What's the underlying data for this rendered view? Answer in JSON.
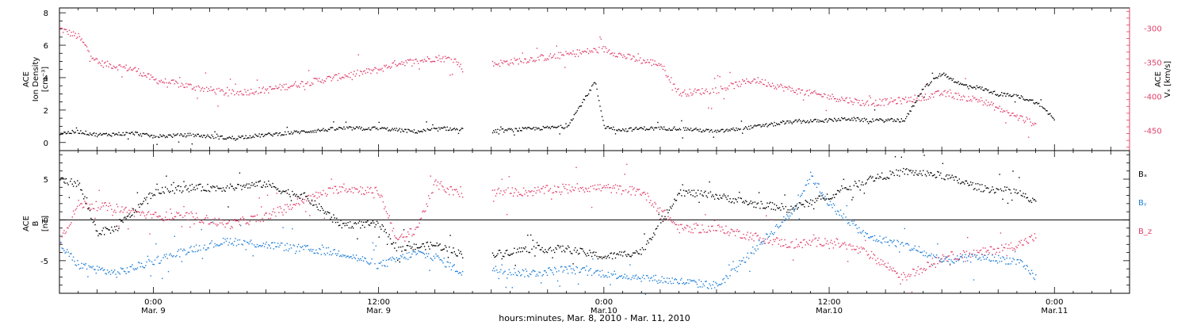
{
  "colors": {
    "black": "#000000",
    "red": "#e0406a",
    "blue": "#1f7ed6",
    "axis": "#000000"
  },
  "panels": {
    "top": {
      "ylabel_lines": [
        "ACE",
        "Ion Density",
        "[cm⁻³]"
      ],
      "right_label_lines": [
        "ACE",
        "Vₓ [km/s]"
      ]
    },
    "bottom": {
      "ylabel_lines": [
        "ACE",
        "B",
        "[nT]"
      ],
      "legend": [
        {
          "label": "Bₓ",
          "color": "#000000"
        },
        {
          "label": "Bᵧ",
          "color": "#1f7ed6"
        },
        {
          "label": "B_z",
          "color": "#e0406a"
        }
      ]
    }
  },
  "xaxis": {
    "ticks": [
      {
        "t": 0,
        "line1": "0:00",
        "line2": "Mar. 9"
      },
      {
        "t": 12,
        "line1": "12:00",
        "line2": "Mar. 9"
      },
      {
        "t": 24,
        "line1": "0:00",
        "line2": "Mar.10"
      },
      {
        "t": 36,
        "line1": "12:00",
        "line2": "Mar.10"
      },
      {
        "t": 48,
        "line1": "0:00",
        "line2": "Mar.11"
      }
    ],
    "title": "hours:minutes, Mar.  8, 2010 - Mar. 11, 2010"
  },
  "chart_data": [
    {
      "type": "scatter",
      "panel": "top",
      "xlim": [
        -5,
        52
      ],
      "ylim_left": [
        -0.5,
        8.3
      ],
      "ylim_right": [
        -480,
        -270
      ],
      "left_ticks": [
        0,
        2,
        4,
        6,
        8
      ],
      "right_ticks": [
        -300,
        -350,
        -400,
        -450
      ],
      "series": [
        {
          "name": "Ion Density",
          "color": "black",
          "axis": "left",
          "anchors": [
            [
              -5,
              0.6
            ],
            [
              -4,
              0.7
            ],
            [
              -3,
              0.5
            ],
            [
              -1,
              0.6
            ],
            [
              0,
              0.4
            ],
            [
              2,
              0.5
            ],
            [
              4,
              0.3
            ],
            [
              6,
              0.5
            ],
            [
              8,
              0.7
            ],
            [
              10,
              0.9
            ],
            [
              12,
              0.9
            ],
            [
              14,
              0.7
            ],
            [
              15.5,
              0.9
            ],
            [
              17.5,
              0.7
            ],
            [
              22,
              1.0
            ],
            [
              23,
              2.8
            ],
            [
              23.5,
              3.8
            ],
            [
              24,
              1.0
            ],
            [
              25,
              0.8
            ],
            [
              26,
              0.9
            ],
            [
              28,
              0.9
            ],
            [
              30,
              0.7
            ],
            [
              32,
              1.0
            ],
            [
              34,
              1.3
            ],
            [
              36,
              1.4
            ],
            [
              37,
              1.5
            ],
            [
              38,
              1.4
            ],
            [
              40,
              1.4
            ],
            [
              41,
              3.4
            ],
            [
              42,
              4.3
            ],
            [
              43,
              3.6
            ],
            [
              44,
              3.4
            ],
            [
              45,
              3.0
            ],
            [
              46,
              2.9
            ],
            [
              47,
              2.5
            ],
            [
              48,
              1.5
            ]
          ],
          "gaps": [
            [
              16.5,
              18
            ]
          ]
        },
        {
          "name": "Vx",
          "color": "red",
          "axis": "right",
          "anchors": [
            [
              -5,
              -300
            ],
            [
              -4,
              -312
            ],
            [
              -3,
              -350
            ],
            [
              -1,
              -360
            ],
            [
              0,
              -375
            ],
            [
              2,
              -385
            ],
            [
              4,
              -395
            ],
            [
              6,
              -390
            ],
            [
              8,
              -380
            ],
            [
              10,
              -370
            ],
            [
              12,
              -360
            ],
            [
              13,
              -350
            ],
            [
              14,
              -348
            ],
            [
              15,
              -343
            ],
            [
              16,
              -345
            ],
            [
              16.5,
              -360
            ],
            [
              18,
              -352
            ],
            [
              20,
              -345
            ],
            [
              22,
              -338
            ],
            [
              24,
              -330
            ],
            [
              25,
              -340
            ],
            [
              26,
              -347
            ],
            [
              27,
              -352
            ],
            [
              28,
              -395
            ],
            [
              30,
              -390
            ],
            [
              32,
              -375
            ],
            [
              34,
              -390
            ],
            [
              36,
              -400
            ],
            [
              38,
              -410
            ],
            [
              40,
              -405
            ],
            [
              42,
              -395
            ],
            [
              44,
              -405
            ],
            [
              46,
              -430
            ],
            [
              47,
              -440
            ]
          ],
          "gaps": [
            [
              16.5,
              18
            ]
          ]
        }
      ]
    },
    {
      "type": "scatter",
      "panel": "bottom",
      "xlim": [
        -5,
        52
      ],
      "ylim": [
        -9,
        8.5
      ],
      "ticks": [
        5,
        0,
        -5
      ],
      "series": [
        {
          "name": "Bx",
          "color": "black",
          "anchors": [
            [
              -5,
              5.0
            ],
            [
              -4,
              4.5
            ],
            [
              -3,
              -1.5
            ],
            [
              -2,
              -1.0
            ],
            [
              0,
              3.5
            ],
            [
              2,
              4.0
            ],
            [
              4,
              4.0
            ],
            [
              6,
              4.5
            ],
            [
              7,
              3.5
            ],
            [
              8,
              3.0
            ],
            [
              10,
              -0.5
            ],
            [
              12,
              -0.5
            ],
            [
              13,
              -3.5
            ],
            [
              15,
              -3.0
            ],
            [
              16.5,
              -4.2
            ],
            [
              18,
              -4.2
            ],
            [
              20,
              -3.5
            ],
            [
              22,
              -3.5
            ],
            [
              24,
              -4.5
            ],
            [
              26,
              -3.8
            ],
            [
              28,
              3.5
            ],
            [
              30,
              3.0
            ],
            [
              32,
              2.0
            ],
            [
              34,
              1.5
            ],
            [
              36,
              3.0
            ],
            [
              38,
              5.0
            ],
            [
              40,
              6.0
            ],
            [
              42,
              5.5
            ],
            [
              44,
              4.0
            ],
            [
              46,
              3.5
            ],
            [
              47,
              2.0
            ]
          ],
          "gaps": [
            [
              16.5,
              18
            ]
          ]
        },
        {
          "name": "By",
          "color": "blue",
          "anchors": [
            [
              -5,
              -3
            ],
            [
              -4,
              -5.5
            ],
            [
              -2,
              -6.5
            ],
            [
              0,
              -5.0
            ],
            [
              2,
              -3.5
            ],
            [
              4,
              -2.5
            ],
            [
              6,
              -3.0
            ],
            [
              8,
              -3.5
            ],
            [
              10,
              -4.0
            ],
            [
              12,
              -5.5
            ],
            [
              14,
              -4.0
            ],
            [
              15,
              -4.5
            ],
            [
              16.5,
              -6.5
            ],
            [
              18,
              -6.0
            ],
            [
              20,
              -6.5
            ],
            [
              22,
              -6.0
            ],
            [
              24,
              -6.5
            ],
            [
              26,
              -7.0
            ],
            [
              28,
              -7.5
            ],
            [
              30,
              -8.0
            ],
            [
              31,
              -6.0
            ],
            [
              32,
              -3.5
            ],
            [
              34,
              1.0
            ],
            [
              35,
              5.5
            ],
            [
              36,
              2.0
            ],
            [
              38,
              -2.0
            ],
            [
              40,
              -3.0
            ],
            [
              42,
              -5.0
            ],
            [
              44,
              -4.5
            ],
            [
              46,
              -5.0
            ],
            [
              47,
              -7.0
            ]
          ],
          "gaps": [
            [
              16.5,
              18
            ]
          ]
        },
        {
          "name": "Bz",
          "color": "red",
          "anchors": [
            [
              -5,
              -2.5
            ],
            [
              -4,
              2.0
            ],
            [
              -2,
              1.5
            ],
            [
              0,
              0.5
            ],
            [
              2,
              0.5
            ],
            [
              4,
              -0.5
            ],
            [
              6,
              0.5
            ],
            [
              8,
              2.5
            ],
            [
              10,
              4.0
            ],
            [
              12,
              3.5
            ],
            [
              13,
              -2.5
            ],
            [
              14,
              -1.0
            ],
            [
              15,
              4.5
            ],
            [
              16.5,
              3.0
            ],
            [
              18,
              3.5
            ],
            [
              20,
              3.5
            ],
            [
              22,
              4.0
            ],
            [
              24,
              4.0
            ],
            [
              26,
              3.5
            ],
            [
              28,
              -1.0
            ],
            [
              30,
              -1.0
            ],
            [
              32,
              -2.0
            ],
            [
              34,
              -3.0
            ],
            [
              36,
              -2.5
            ],
            [
              38,
              -4.0
            ],
            [
              40,
              -7.0
            ],
            [
              42,
              -4.5
            ],
            [
              44,
              -4.0
            ],
            [
              46,
              -3.0
            ],
            [
              47,
              -2.0
            ]
          ],
          "gaps": [
            [
              16.5,
              18
            ]
          ]
        }
      ]
    }
  ]
}
